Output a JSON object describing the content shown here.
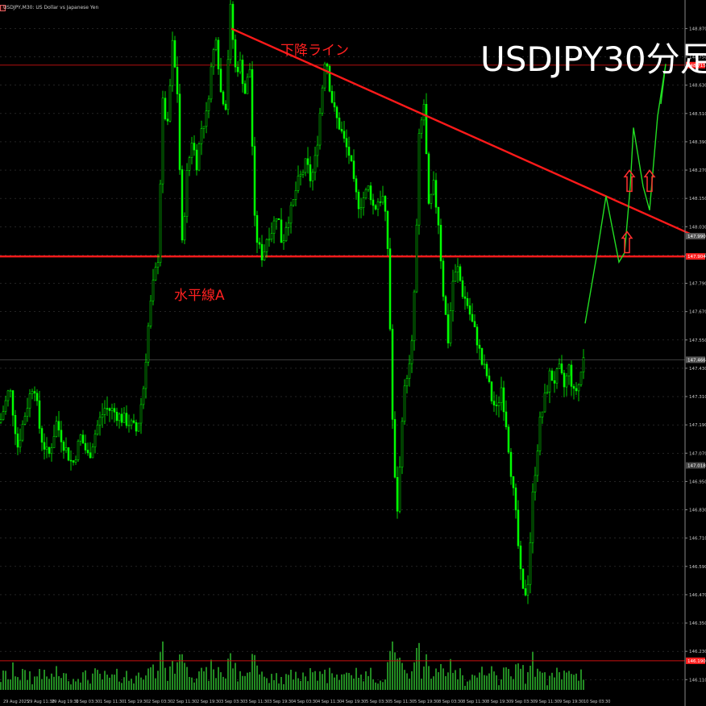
{
  "window": {
    "title": "USDJPY,M30:  US Dollar vs Japanese Yen"
  },
  "colors": {
    "background": "#000000",
    "candle": "#00ff00",
    "volume": "#228b22",
    "trendline": "#ff1a1a",
    "level_line": "#cc1111",
    "text_red": "#ff2020",
    "projection": "#22dd22",
    "axis_text": "#c8c8c8",
    "grid": "#3a3a3a"
  },
  "chart_data": {
    "type": "candlestick",
    "symbol": "USDJPY",
    "timeframe": "M30",
    "annotations": {
      "big_title": "USDJPY30分足",
      "trendline_label": "下降ライン",
      "horizontal_label": "水平線A"
    },
    "ylim": [
      146.07,
      148.95
    ],
    "yticks": [
      "148.870",
      "148.750",
      "148.630",
      "148.510",
      "148.390",
      "148.270",
      "148.150",
      "148.030",
      "147.910",
      "147.790",
      "147.670",
      "147.550",
      "147.430",
      "147.310",
      "147.190",
      "147.070",
      "146.950",
      "146.830",
      "146.710",
      "146.590",
      "146.470",
      "146.350",
      "146.230",
      "146.110"
    ],
    "price_tags": [
      {
        "label": "148.715",
        "value": 148.715,
        "color": "#ff2020"
      },
      {
        "label": "147.990",
        "value": 147.99,
        "color": "#555555"
      },
      {
        "label": "147.904",
        "value": 147.904,
        "color": "#ff2020"
      },
      {
        "label": "147.466",
        "value": 147.466,
        "color": "#555555"
      },
      {
        "label": "147.018",
        "value": 147.018,
        "color": "#444444"
      },
      {
        "label": "146.190",
        "value": 146.19,
        "color": "#ff2020"
      }
    ],
    "horizontal_levels": [
      148.715,
      147.904,
      146.19
    ],
    "horizontal_line_A": 147.904,
    "current_price": 147.466,
    "trendline": {
      "x1_label": "3 Sep 03:30",
      "y1": 148.87,
      "x2_label": "future",
      "y2": 148.0
    },
    "x_labels": [
      "29 Aug 2025",
      "29 Aug 11:30",
      "29 Aug 19:30",
      "1 Sep 03:30",
      "1 Sep 11:30",
      "1 Sep 19:30",
      "2 Sep 03:30",
      "2 Sep 11:30",
      "2 Sep 19:30",
      "3 Sep 03:30",
      "3 Sep 11:30",
      "3 Sep 19:30",
      "4 Sep 03:30",
      "4 Sep 11:30",
      "4 Sep 19:30",
      "5 Sep 03:30",
      "5 Sep 11:30",
      "5 Sep 19:30",
      "8 Sep 03:30",
      "8 Sep 11:30",
      "8 Sep 19:30",
      "9 Sep 03:30",
      "9 Sep 11:30",
      "9 Sep 19:30",
      "10 Sep 03:30"
    ],
    "price_path": [
      [
        0,
        147.2
      ],
      [
        12,
        147.35
      ],
      [
        22,
        147.1
      ],
      [
        32,
        147.25
      ],
      [
        42,
        147.38
      ],
      [
        50,
        147.15
      ],
      [
        60,
        147.05
      ],
      [
        70,
        147.2
      ],
      [
        80,
        147.1
      ],
      [
        90,
        147.02
      ],
      [
        100,
        147.14
      ],
      [
        110,
        147.05
      ],
      [
        120,
        147.18
      ],
      [
        130,
        147.26
      ],
      [
        140,
        147.25
      ],
      [
        150,
        147.22
      ],
      [
        160,
        147.2
      ],
      [
        170,
        147.16
      ],
      [
        178,
        147.35
      ],
      [
        185,
        147.65
      ],
      [
        190,
        147.78
      ],
      [
        196,
        147.9
      ],
      [
        202,
        148.55
      ],
      [
        208,
        148.45
      ],
      [
        214,
        148.8
      ],
      [
        220,
        148.6
      ],
      [
        226,
        147.95
      ],
      [
        232,
        148.25
      ],
      [
        238,
        148.4
      ],
      [
        244,
        148.3
      ],
      [
        250,
        148.45
      ],
      [
        256,
        148.5
      ],
      [
        262,
        148.7
      ],
      [
        268,
        148.85
      ],
      [
        274,
        148.6
      ],
      [
        280,
        148.55
      ],
      [
        286,
        148.95
      ],
      [
        292,
        148.7
      ],
      [
        298,
        148.72
      ],
      [
        304,
        148.6
      ],
      [
        310,
        148.7
      ],
      [
        316,
        148.05
      ],
      [
        320,
        147.95
      ],
      [
        326,
        147.9
      ],
      [
        332,
        148.0
      ],
      [
        338,
        148.02
      ],
      [
        344,
        148.1
      ],
      [
        350,
        147.95
      ],
      [
        356,
        148.06
      ],
      [
        362,
        148.1
      ],
      [
        368,
        148.2
      ],
      [
        374,
        148.25
      ],
      [
        380,
        148.3
      ],
      [
        386,
        148.22
      ],
      [
        392,
        148.33
      ],
      [
        398,
        148.55
      ],
      [
        404,
        148.78
      ],
      [
        410,
        148.6
      ],
      [
        416,
        148.5
      ],
      [
        422,
        148.45
      ],
      [
        428,
        148.38
      ],
      [
        434,
        148.33
      ],
      [
        440,
        148.18
      ],
      [
        446,
        148.12
      ],
      [
        452,
        148.16
      ],
      [
        458,
        148.2
      ],
      [
        464,
        148.1
      ],
      [
        470,
        148.15
      ],
      [
        476,
        148.15
      ],
      [
        482,
        147.9
      ],
      [
        486,
        147.3
      ],
      [
        490,
        146.95
      ],
      [
        494,
        146.8
      ],
      [
        498,
        147.2
      ],
      [
        504,
        147.4
      ],
      [
        510,
        147.45
      ],
      [
        516,
        147.9
      ],
      [
        520,
        148.4
      ],
      [
        526,
        148.55
      ],
      [
        532,
        148.1
      ],
      [
        538,
        148.2
      ],
      [
        544,
        148.05
      ],
      [
        550,
        147.75
      ],
      [
        556,
        147.55
      ],
      [
        562,
        147.8
      ],
      [
        568,
        147.85
      ],
      [
        574,
        147.75
      ],
      [
        580,
        147.7
      ],
      [
        586,
        147.62
      ],
      [
        592,
        147.55
      ],
      [
        598,
        147.45
      ],
      [
        604,
        147.4
      ],
      [
        610,
        147.3
      ],
      [
        616,
        147.25
      ],
      [
        622,
        147.35
      ],
      [
        628,
        147.2
      ],
      [
        634,
        147.0
      ],
      [
        640,
        146.8
      ],
      [
        646,
        146.55
      ],
      [
        650,
        146.45
      ],
      [
        656,
        146.55
      ],
      [
        660,
        146.85
      ],
      [
        664,
        147.0
      ],
      [
        670,
        147.2
      ],
      [
        676,
        147.3
      ],
      [
        682,
        147.4
      ],
      [
        688,
        147.38
      ],
      [
        694,
        147.42
      ],
      [
        700,
        147.35
      ],
      [
        706,
        147.43
      ],
      [
        712,
        147.32
      ],
      [
        718,
        147.36
      ],
      [
        724,
        147.47
      ]
    ],
    "projection_path": [
      [
        726,
        147.62
      ],
      [
        740,
        147.9
      ],
      [
        752,
        148.16
      ],
      [
        768,
        147.88
      ],
      [
        775,
        147.92
      ],
      [
        782,
        148.2
      ],
      [
        786,
        148.45
      ],
      [
        798,
        148.2
      ],
      [
        806,
        148.1
      ],
      [
        816,
        148.5
      ],
      [
        826,
        148.72
      ],
      [
        820,
        148.55
      ]
    ],
    "projection_arrows": [
      {
        "x": 778,
        "y": 147.92
      },
      {
        "x": 781,
        "y": 148.18
      },
      {
        "x": 806,
        "y": 148.18
      }
    ]
  }
}
